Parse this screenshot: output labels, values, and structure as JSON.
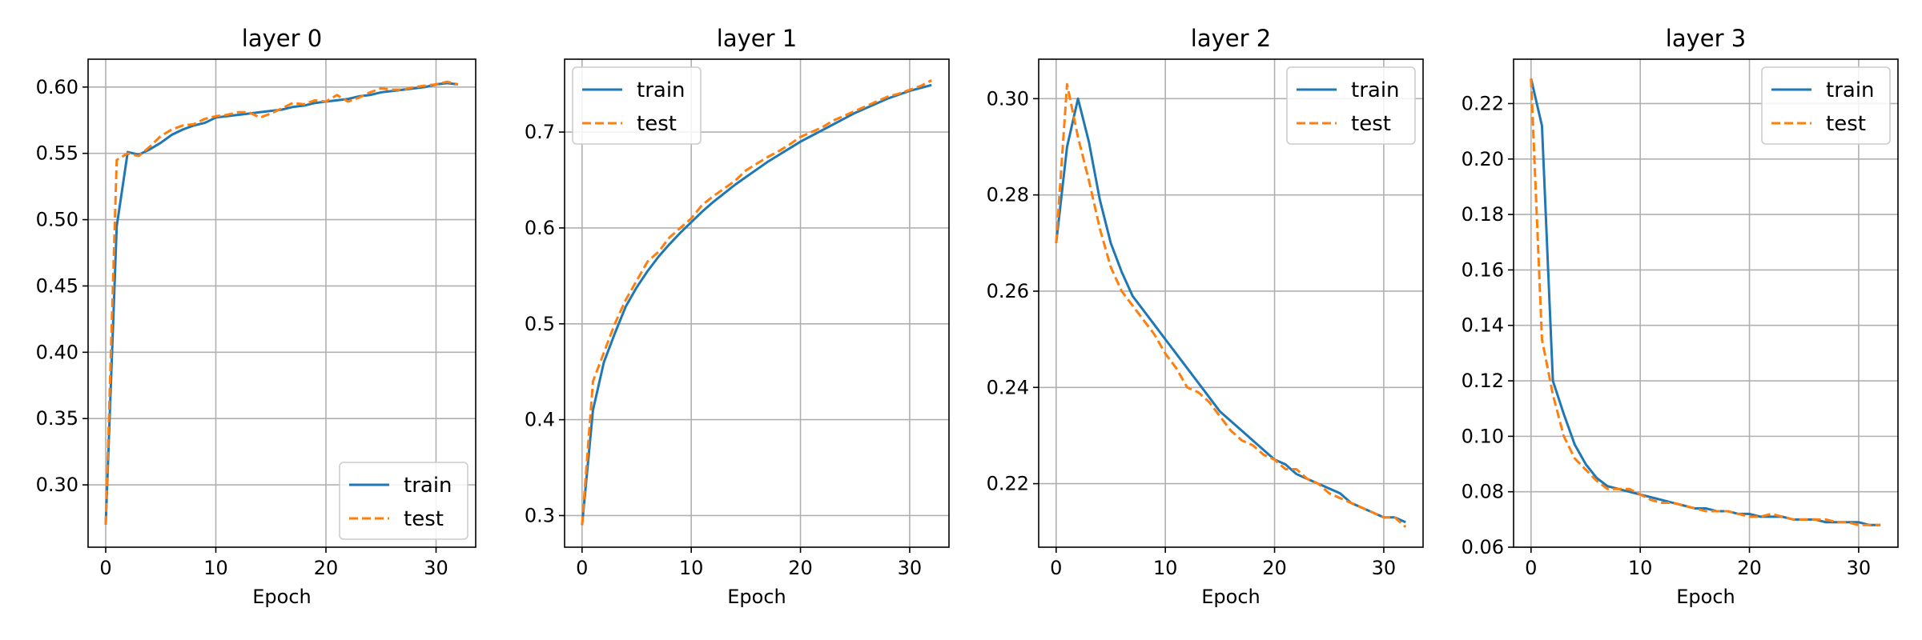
{
  "colors": {
    "train": "#1f77b4",
    "test": "#ff7f0e",
    "grid": "#b0b0b0"
  },
  "chart_data": [
    {
      "type": "line",
      "title": "layer 0",
      "xlabel": "Epoch",
      "ylabel": "",
      "grid": true,
      "legend": {
        "placement": "bottom-right",
        "entries": [
          "train",
          "test"
        ]
      },
      "xlim": [
        -1.6,
        33.6
      ],
      "ylim": [
        0.253,
        0.621
      ],
      "xticks": [
        0,
        10,
        20,
        30
      ],
      "xtick_labels": [
        "0",
        "10",
        "20",
        "30"
      ],
      "yticks": [
        0.3,
        0.35,
        0.4,
        0.45,
        0.5,
        0.55,
        0.6
      ],
      "ytick_labels": [
        "0.30",
        "0.35",
        "0.40",
        "0.45",
        "0.50",
        "0.55",
        "0.60"
      ],
      "x": [
        0,
        1,
        2,
        3,
        4,
        5,
        6,
        7,
        8,
        9,
        10,
        11,
        12,
        13,
        14,
        15,
        16,
        17,
        18,
        19,
        20,
        21,
        22,
        23,
        24,
        25,
        26,
        27,
        28,
        29,
        30,
        31,
        32
      ],
      "series": [
        {
          "name": "train",
          "style": "solid",
          "values": [
            0.27,
            0.495,
            0.551,
            0.549,
            0.553,
            0.558,
            0.564,
            0.568,
            0.571,
            0.573,
            0.577,
            0.578,
            0.579,
            0.58,
            0.581,
            0.582,
            0.583,
            0.585,
            0.586,
            0.588,
            0.589,
            0.59,
            0.591,
            0.593,
            0.594,
            0.596,
            0.597,
            0.598,
            0.599,
            0.6,
            0.602,
            0.603,
            0.602
          ]
        },
        {
          "name": "test",
          "style": "dashed",
          "values": [
            0.27,
            0.545,
            0.55,
            0.548,
            0.555,
            0.563,
            0.568,
            0.571,
            0.572,
            0.576,
            0.578,
            0.579,
            0.581,
            0.581,
            0.577,
            0.58,
            0.584,
            0.588,
            0.587,
            0.59,
            0.589,
            0.594,
            0.589,
            0.592,
            0.596,
            0.599,
            0.598,
            0.598,
            0.6,
            0.601,
            0.602,
            0.604,
            0.602
          ]
        }
      ]
    },
    {
      "type": "line",
      "title": "layer 1",
      "xlabel": "Epoch",
      "ylabel": "",
      "grid": true,
      "legend": {
        "placement": "top-left",
        "entries": [
          "train",
          "test"
        ]
      },
      "xlim": [
        -1.6,
        33.6
      ],
      "ylim": [
        0.267,
        0.776
      ],
      "xticks": [
        0,
        10,
        20,
        30
      ],
      "xtick_labels": [
        "0",
        "10",
        "20",
        "30"
      ],
      "yticks": [
        0.3,
        0.4,
        0.5,
        0.6,
        0.7
      ],
      "ytick_labels": [
        "0.3",
        "0.4",
        "0.5",
        "0.6",
        "0.7"
      ],
      "x": [
        0,
        1,
        2,
        3,
        4,
        5,
        6,
        7,
        8,
        9,
        10,
        11,
        12,
        13,
        14,
        15,
        16,
        17,
        18,
        19,
        20,
        21,
        22,
        23,
        24,
        25,
        26,
        27,
        28,
        29,
        30,
        31,
        32
      ],
      "series": [
        {
          "name": "train",
          "style": "solid",
          "values": [
            0.29,
            0.41,
            0.46,
            0.49,
            0.518,
            0.538,
            0.555,
            0.57,
            0.583,
            0.595,
            0.606,
            0.617,
            0.627,
            0.636,
            0.645,
            0.653,
            0.661,
            0.669,
            0.676,
            0.683,
            0.69,
            0.696,
            0.702,
            0.708,
            0.714,
            0.72,
            0.725,
            0.73,
            0.735,
            0.739,
            0.743,
            0.746,
            0.749
          ]
        },
        {
          "name": "test",
          "style": "dashed",
          "values": [
            0.29,
            0.44,
            0.47,
            0.5,
            0.525,
            0.545,
            0.565,
            0.575,
            0.59,
            0.6,
            0.61,
            0.624,
            0.633,
            0.641,
            0.649,
            0.66,
            0.667,
            0.674,
            0.68,
            0.687,
            0.695,
            0.7,
            0.705,
            0.712,
            0.717,
            0.722,
            0.727,
            0.732,
            0.737,
            0.74,
            0.744,
            0.748,
            0.754
          ]
        }
      ]
    },
    {
      "type": "line",
      "title": "layer 2",
      "xlabel": "Epoch",
      "ylabel": "",
      "grid": true,
      "legend": {
        "placement": "top-right",
        "entries": [
          "train",
          "test"
        ]
      },
      "xlim": [
        -1.6,
        33.6
      ],
      "ylim": [
        0.2068,
        0.3082
      ],
      "xticks": [
        0,
        10,
        20,
        30
      ],
      "xtick_labels": [
        "0",
        "10",
        "20",
        "30"
      ],
      "yticks": [
        0.22,
        0.24,
        0.26,
        0.28,
        0.3
      ],
      "ytick_labels": [
        "0.22",
        "0.24",
        "0.26",
        "0.28",
        "0.30"
      ],
      "x": [
        0,
        1,
        2,
        3,
        4,
        5,
        6,
        7,
        8,
        9,
        10,
        11,
        12,
        13,
        14,
        15,
        16,
        17,
        18,
        19,
        20,
        21,
        22,
        23,
        24,
        25,
        26,
        27,
        28,
        29,
        30,
        31,
        32
      ],
      "series": [
        {
          "name": "train",
          "style": "solid",
          "values": [
            0.27,
            0.29,
            0.3,
            0.291,
            0.279,
            0.27,
            0.264,
            0.259,
            0.256,
            0.253,
            0.25,
            0.247,
            0.244,
            0.241,
            0.238,
            0.235,
            0.233,
            0.231,
            0.229,
            0.227,
            0.225,
            0.224,
            0.222,
            0.221,
            0.22,
            0.219,
            0.218,
            0.216,
            0.215,
            0.214,
            0.213,
            0.213,
            0.212
          ]
        },
        {
          "name": "test",
          "style": "dashed",
          "values": [
            0.27,
            0.303,
            0.292,
            0.283,
            0.273,
            0.265,
            0.26,
            0.257,
            0.254,
            0.251,
            0.247,
            0.244,
            0.24,
            0.239,
            0.237,
            0.234,
            0.231,
            0.229,
            0.228,
            0.226,
            0.225,
            0.223,
            0.223,
            0.221,
            0.22,
            0.218,
            0.217,
            0.216,
            0.215,
            0.214,
            0.213,
            0.213,
            0.211
          ]
        }
      ]
    },
    {
      "type": "line",
      "title": "layer 3",
      "xlabel": "Epoch",
      "ylabel": "",
      "grid": true,
      "legend": {
        "placement": "top-right",
        "entries": [
          "train",
          "test"
        ]
      },
      "xlim": [
        -1.6,
        33.6
      ],
      "ylim": [
        0.06,
        0.236
      ],
      "xticks": [
        0,
        10,
        20,
        30
      ],
      "xtick_labels": [
        "0",
        "10",
        "20",
        "30"
      ],
      "yticks": [
        0.06,
        0.08,
        0.1,
        0.12,
        0.14,
        0.16,
        0.18,
        0.2,
        0.22
      ],
      "ytick_labels": [
        "0.06",
        "0.08",
        "0.10",
        "0.12",
        "0.14",
        "0.16",
        "0.18",
        "0.20",
        "0.22"
      ],
      "x": [
        0,
        1,
        2,
        3,
        4,
        5,
        6,
        7,
        8,
        9,
        10,
        11,
        12,
        13,
        14,
        15,
        16,
        17,
        18,
        19,
        20,
        21,
        22,
        23,
        24,
        25,
        26,
        27,
        28,
        29,
        30,
        31,
        32
      ],
      "series": [
        {
          "name": "train",
          "style": "solid",
          "values": [
            0.229,
            0.212,
            0.12,
            0.108,
            0.097,
            0.09,
            0.085,
            0.082,
            0.081,
            0.08,
            0.079,
            0.078,
            0.077,
            0.076,
            0.075,
            0.074,
            0.074,
            0.073,
            0.073,
            0.072,
            0.072,
            0.071,
            0.071,
            0.071,
            0.07,
            0.07,
            0.07,
            0.069,
            0.069,
            0.069,
            0.069,
            0.068,
            0.068
          ]
        },
        {
          "name": "test",
          "style": "dashed",
          "values": [
            0.229,
            0.135,
            0.115,
            0.1,
            0.092,
            0.088,
            0.084,
            0.081,
            0.081,
            0.081,
            0.079,
            0.077,
            0.076,
            0.076,
            0.075,
            0.074,
            0.073,
            0.073,
            0.073,
            0.072,
            0.071,
            0.071,
            0.072,
            0.071,
            0.07,
            0.07,
            0.07,
            0.07,
            0.069,
            0.069,
            0.068,
            0.068,
            0.068
          ]
        }
      ]
    }
  ]
}
